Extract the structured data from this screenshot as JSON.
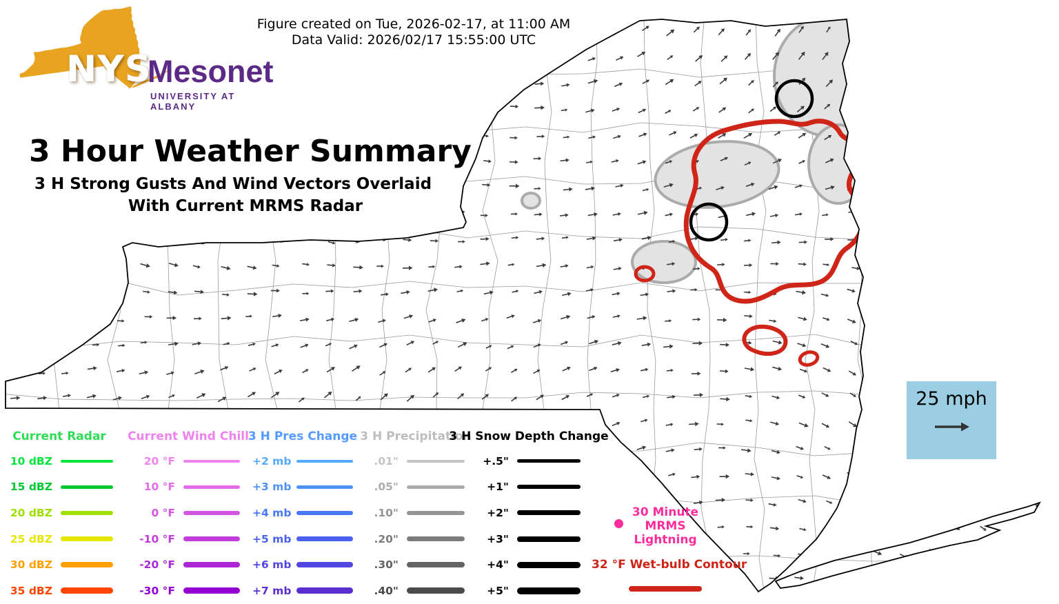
{
  "figure": {
    "created": "Figure created on Tue, 2026-02-17, at 11:00 AM",
    "valid": "Data Valid: 2026/02/17 15:55:00 UTC"
  },
  "logo": {
    "acronym": "NYS",
    "name": "Mesonet",
    "subtitle": "UNIVERSITY AT ALBANY",
    "state_fill": "#E8A321",
    "text_purple": "#5B2A86"
  },
  "title": {
    "main": "3 Hour Weather Summary",
    "sub1": "3 H Strong Gusts And Wind Vectors Overlaid",
    "sub2": "With Current MRMS Radar"
  },
  "wind_scale": {
    "label": "25 mph",
    "box_color": "#9CCEE3",
    "arrow_color": "#333333"
  },
  "map": {
    "region": "New York State",
    "wind_vector_color": "#3A3A3A",
    "county_line_color": "#444444",
    "outline_color": "#000000",
    "wetbulb_contour_color": "#CF2418",
    "precip_fill": "#E3E3E3",
    "precip_stroke": "#ABABAB",
    "snow_contour_color": "#000000"
  },
  "legend": {
    "columns": [
      {
        "title": "Current Radar",
        "title_color": "#2EDD55",
        "rows": [
          {
            "label": "10 dBZ",
            "color": "#00E63C",
            "weight": 4
          },
          {
            "label": "15 dBZ",
            "color": "#00C832",
            "weight": 5
          },
          {
            "label": "20 dBZ",
            "color": "#A0E000",
            "weight": 6
          },
          {
            "label": "25 dBZ",
            "color": "#E6E600",
            "weight": 7
          },
          {
            "label": "30 dBZ",
            "color": "#FFA000",
            "weight": 8
          },
          {
            "label": "35 dBZ",
            "color": "#FF4500",
            "weight": 9
          }
        ]
      },
      {
        "title": "Current Wind Chill",
        "title_color": "#EE82EE",
        "rows": [
          {
            "label": "20 °F",
            "color": "#EE82EE",
            "weight": 4
          },
          {
            "label": "10 °F",
            "color": "#E36BE8",
            "weight": 5
          },
          {
            "label": "0 °F",
            "color": "#D455E2",
            "weight": 6
          },
          {
            "label": "-10 °F",
            "color": "#C23EDC",
            "weight": 7
          },
          {
            "label": "-20 °F",
            "color": "#AB28D6",
            "weight": 8
          },
          {
            "label": "-30 °F",
            "color": "#9400D3",
            "weight": 9
          }
        ]
      },
      {
        "title": "3 H Pres Change",
        "title_color": "#559AFF",
        "rows": [
          {
            "label": "+2 mb",
            "color": "#55AAFF",
            "weight": 4
          },
          {
            "label": "+3 mb",
            "color": "#4E91FA",
            "weight": 5
          },
          {
            "label": "+4 mb",
            "color": "#4878F5",
            "weight": 6
          },
          {
            "label": "+5 mb",
            "color": "#4A60EE",
            "weight": 7
          },
          {
            "label": "+6 mb",
            "color": "#5247E0",
            "weight": 8
          },
          {
            "label": "+7 mb",
            "color": "#5A2ED0",
            "weight": 9
          }
        ]
      },
      {
        "title": "3 H Precipitation",
        "title_color": "#BDBDBD",
        "rows": [
          {
            "label": ".01\"",
            "color": "#C3C3C3",
            "weight": 4
          },
          {
            "label": ".05\"",
            "color": "#ACACAC",
            "weight": 5
          },
          {
            "label": ".10\"",
            "color": "#959595",
            "weight": 6
          },
          {
            "label": ".20\"",
            "color": "#7D7D7D",
            "weight": 7
          },
          {
            "label": ".30\"",
            "color": "#646464",
            "weight": 8
          },
          {
            "label": ".40\"",
            "color": "#4B4B4B",
            "weight": 9
          }
        ]
      },
      {
        "title": "3 H Snow Depth Change",
        "title_color": "#000000",
        "rows": [
          {
            "label": "+.5\"",
            "color": "#000000",
            "weight": 5
          },
          {
            "label": "+1\"",
            "color": "#000000",
            "weight": 6
          },
          {
            "label": "+2\"",
            "color": "#000000",
            "weight": 7
          },
          {
            "label": "+3\"",
            "color": "#000000",
            "weight": 8
          },
          {
            "label": "+4\"",
            "color": "#000000",
            "weight": 9
          },
          {
            "label": "+5\"",
            "color": "#000000",
            "weight": 10
          }
        ]
      }
    ],
    "lightning": {
      "lines": [
        "30 Minute",
        "MRMS",
        "Lightning"
      ],
      "color": "#FF2D9B"
    },
    "wetbulb": {
      "label": "32 °F Wet-bulb Contour",
      "color": "#CF2418"
    }
  }
}
